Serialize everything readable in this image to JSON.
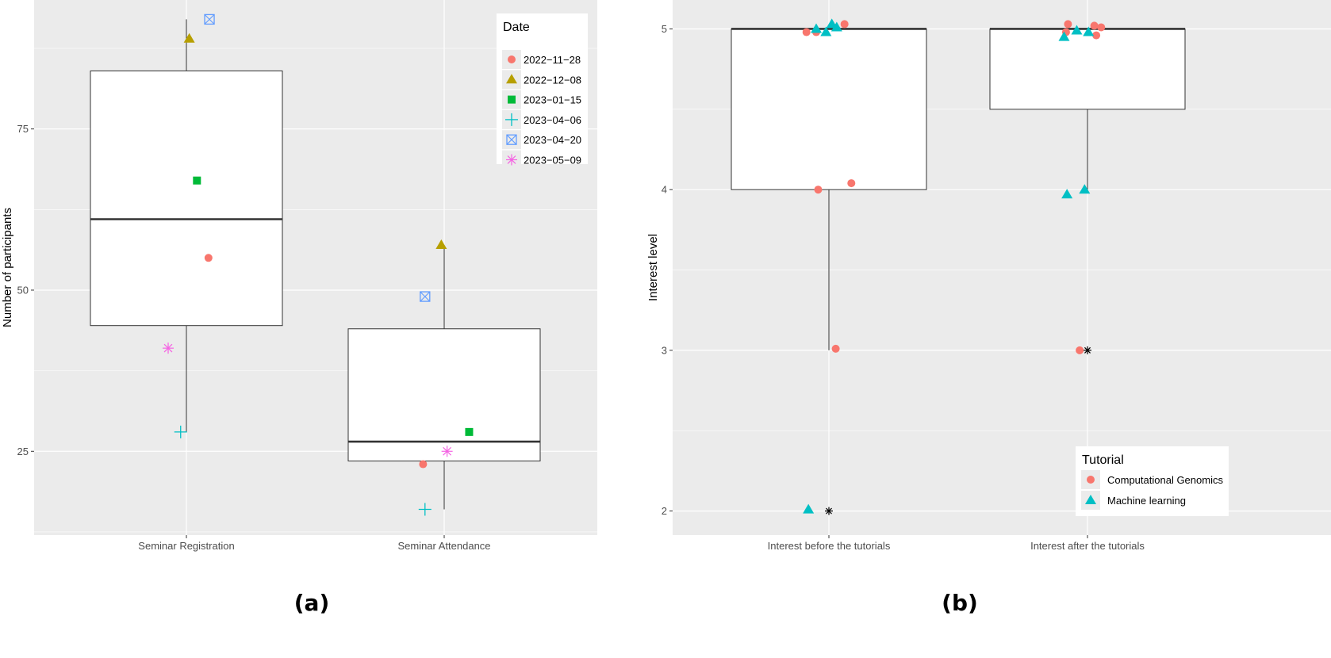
{
  "chart_data": [
    {
      "panel_label": "(a)",
      "type": "boxplot",
      "title": "",
      "xlabel": "",
      "ylabel": "Number of participants",
      "ylim": [
        12,
        95
      ],
      "yticks": [
        "25",
        "50",
        "75"
      ],
      "grid": true,
      "categories": [
        "Seminar Registration",
        "Seminar Attendance"
      ],
      "boxes": [
        {
          "category": "Seminar Registration",
          "whisker_low": 28,
          "q1": 44.5,
          "median": 61,
          "q3": 84,
          "whisker_high": 92
        },
        {
          "category": "Seminar Attendance",
          "whisker_low": 16,
          "q1": 23.5,
          "median": 26.5,
          "q3": 44,
          "whisker_high": 57
        }
      ],
      "legend": {
        "title": "Date",
        "position": "top-right",
        "entries": [
          "2022−11−28",
          "2022−12−08",
          "2023−01−15",
          "2023−04−06",
          "2023−04−20",
          "2023−05−09"
        ]
      },
      "series": [
        {
          "name": "2022−11−28",
          "shape": "circle",
          "color": "#F8766D",
          "points": [
            {
              "category": "Seminar Registration",
              "y": 55,
              "jitter": 0.23
            },
            {
              "category": "Seminar Attendance",
              "y": 23,
              "jitter": -0.22
            }
          ]
        },
        {
          "name": "2022−12−08",
          "shape": "triangle",
          "color": "#B79F00",
          "points": [
            {
              "category": "Seminar Registration",
              "y": 89,
              "jitter": 0.03
            },
            {
              "category": "Seminar Attendance",
              "y": 57,
              "jitter": -0.03
            }
          ]
        },
        {
          "name": "2023−01−15",
          "shape": "square",
          "color": "#00BA38",
          "points": [
            {
              "category": "Seminar Registration",
              "y": 67,
              "jitter": 0.11
            },
            {
              "category": "Seminar Attendance",
              "y": 28,
              "jitter": 0.26
            }
          ]
        },
        {
          "name": "2023−04−06",
          "shape": "plus",
          "color": "#00BFC4",
          "points": [
            {
              "category": "Seminar Registration",
              "y": 28,
              "jitter": -0.06
            },
            {
              "category": "Seminar Attendance",
              "y": 16,
              "jitter": -0.2
            }
          ]
        },
        {
          "name": "2023−04−20",
          "shape": "square-x",
          "color": "#619CFF",
          "points": [
            {
              "category": "Seminar Registration",
              "y": 92,
              "jitter": 0.24
            },
            {
              "category": "Seminar Attendance",
              "y": 49,
              "jitter": -0.2
            }
          ]
        },
        {
          "name": "2023−05−09",
          "shape": "star",
          "color": "#F564E3",
          "points": [
            {
              "category": "Seminar Registration",
              "y": 41,
              "jitter": -0.19
            },
            {
              "category": "Seminar Attendance",
              "y": 25,
              "jitter": 0.03
            }
          ]
        }
      ]
    },
    {
      "panel_label": "(b)",
      "type": "boxplot",
      "title": "",
      "xlabel": "",
      "ylabel": "Interest level",
      "ylim": [
        1.85,
        5.18
      ],
      "yticks": [
        "2",
        "3",
        "4",
        "5"
      ],
      "grid": true,
      "categories": [
        "Interest before the tutorials",
        "Interest after the tutorials"
      ],
      "boxes": [
        {
          "category": "Interest before the tutorials",
          "whisker_low": 3,
          "q1": 4,
          "median": 5,
          "q3": 5,
          "whisker_high": 5,
          "outliers": [
            2
          ]
        },
        {
          "category": "Interest after the tutorials",
          "whisker_low": 4,
          "q1": 4.5,
          "median": 5,
          "q3": 5,
          "whisker_high": 5,
          "outliers": [
            3
          ]
        }
      ],
      "legend": {
        "title": "Tutorial",
        "position": "bottom-right",
        "entries": [
          "Computational Genomics",
          "Machine learning"
        ]
      },
      "series": [
        {
          "name": "Computational Genomics",
          "shape": "circle",
          "color": "#F8766D",
          "points": [
            {
              "category": "Interest before the tutorials",
              "y": 4.98,
              "jitter": -0.23
            },
            {
              "category": "Interest before the tutorials",
              "y": 4.98,
              "jitter": -0.13
            },
            {
              "category": "Interest before the tutorials",
              "y": 5.03,
              "jitter": 0.16
            },
            {
              "category": "Interest before the tutorials",
              "y": 4.0,
              "jitter": -0.11
            },
            {
              "category": "Interest before the tutorials",
              "y": 4.04,
              "jitter": 0.23
            },
            {
              "category": "Interest before the tutorials",
              "y": 3.01,
              "jitter": 0.07
            },
            {
              "category": "Interest after the tutorials",
              "y": 5.03,
              "jitter": -0.2
            },
            {
              "category": "Interest after the tutorials",
              "y": 4.98,
              "jitter": -0.22
            },
            {
              "category": "Interest after the tutorials",
              "y": 5.02,
              "jitter": 0.07
            },
            {
              "category": "Interest after the tutorials",
              "y": 4.96,
              "jitter": 0.09
            },
            {
              "category": "Interest after the tutorials",
              "y": 5.01,
              "jitter": 0.14
            },
            {
              "category": "Interest after the tutorials",
              "y": 3.0,
              "jitter": -0.08
            }
          ]
        },
        {
          "name": "Machine learning",
          "shape": "triangle",
          "color": "#00BFC4",
          "points": [
            {
              "category": "Interest before the tutorials",
              "y": 5.0,
              "jitter": -0.13
            },
            {
              "category": "Interest before the tutorials",
              "y": 4.98,
              "jitter": -0.03
            },
            {
              "category": "Interest before the tutorials",
              "y": 5.03,
              "jitter": 0.03
            },
            {
              "category": "Interest before the tutorials",
              "y": 5.01,
              "jitter": 0.08
            },
            {
              "category": "Interest before the tutorials",
              "y": 2.01,
              "jitter": -0.21
            },
            {
              "category": "Interest after the tutorials",
              "y": 4.95,
              "jitter": -0.24
            },
            {
              "category": "Interest after the tutorials",
              "y": 4.99,
              "jitter": -0.11
            },
            {
              "category": "Interest after the tutorials",
              "y": 4.98,
              "jitter": 0.01
            },
            {
              "category": "Interest after the tutorials",
              "y": 3.97,
              "jitter": -0.21
            },
            {
              "category": "Interest after the tutorials",
              "y": 4.0,
              "jitter": -0.03
            }
          ]
        }
      ]
    }
  ]
}
